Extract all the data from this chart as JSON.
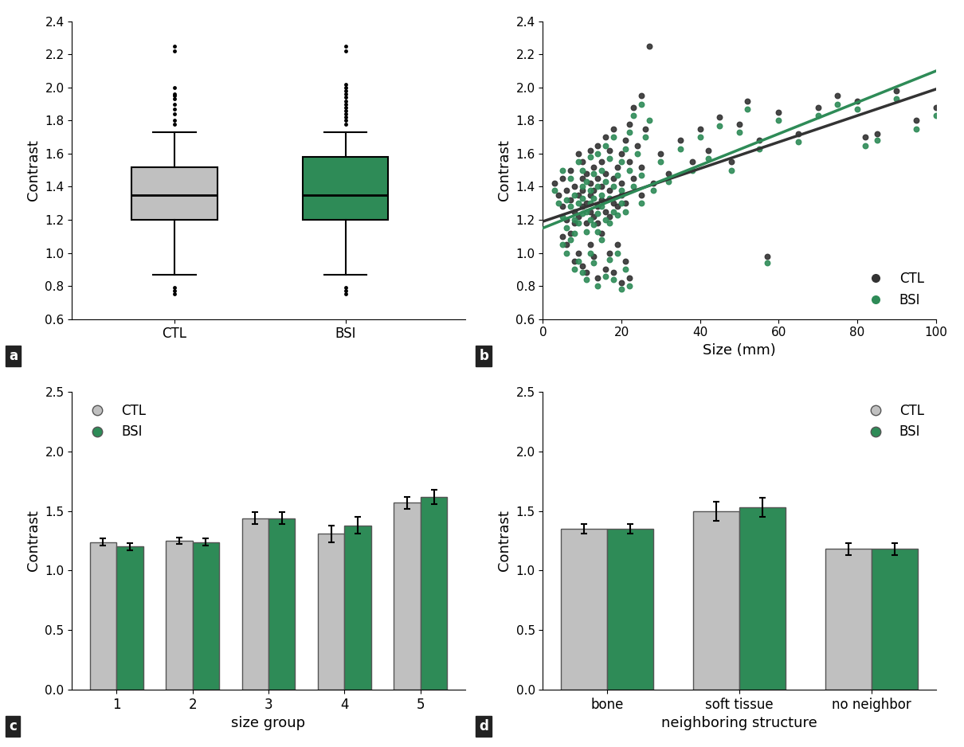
{
  "fig_width": 12.1,
  "fig_height": 9.38,
  "background_color": "#ffffff",
  "panel_a": {
    "label": "a",
    "ylabel": "Contrast",
    "ylim": [
      0.6,
      2.4
    ],
    "yticks": [
      0.6,
      0.8,
      1.0,
      1.2,
      1.4,
      1.6,
      1.8,
      2.0,
      2.2,
      2.4
    ],
    "xticks": [
      "CTL",
      "BSI"
    ],
    "ctl_median": 1.35,
    "ctl_q1": 1.2,
    "ctl_q3": 1.52,
    "ctl_whisker_low": 0.87,
    "ctl_whisker_high": 1.73,
    "ctl_outliers": [
      0.75,
      0.77,
      0.79,
      1.78,
      1.8,
      1.84,
      1.87,
      1.9,
      1.93,
      1.95,
      1.96,
      2.0,
      2.22,
      2.25
    ],
    "bsi_median": 1.35,
    "bsi_q1": 1.2,
    "bsi_q3": 1.58,
    "bsi_whisker_low": 0.87,
    "bsi_whisker_high": 1.73,
    "bsi_outliers": [
      0.75,
      0.77,
      0.79,
      1.78,
      1.8,
      1.82,
      1.84,
      1.86,
      1.88,
      1.9,
      1.92,
      1.94,
      1.96,
      1.98,
      2.0,
      2.02,
      2.22,
      2.25
    ],
    "ctl_color": "#c0c0c0",
    "bsi_color": "#2e8b57"
  },
  "panel_b": {
    "label": "b",
    "ylabel": "Contrast",
    "xlabel": "Size (mm)",
    "ylim": [
      0.6,
      2.4
    ],
    "xlim": [
      0,
      100
    ],
    "yticks": [
      0.6,
      0.8,
      1.0,
      1.2,
      1.4,
      1.6,
      1.8,
      2.0,
      2.2,
      2.4
    ],
    "xticks": [
      0,
      20,
      40,
      60,
      80,
      100
    ],
    "ctl_color": "#333333",
    "bsi_color": "#2e8b57",
    "ctl_line_intercept": 1.19,
    "ctl_line_slope": 0.008,
    "bsi_line_intercept": 1.15,
    "bsi_line_slope": 0.0095,
    "scatter_points": [
      [
        3,
        1.42,
        1.38
      ],
      [
        4,
        1.35,
        1.3
      ],
      [
        5,
        1.28,
        1.22
      ],
      [
        5,
        1.45,
        1.5
      ],
      [
        6,
        1.38,
        1.32
      ],
      [
        6,
        1.2,
        1.15
      ],
      [
        7,
        1.32,
        1.28
      ],
      [
        7,
        1.5,
        1.45
      ],
      [
        8,
        1.4,
        1.35
      ],
      [
        8,
        1.18,
        1.12
      ],
      [
        8,
        1.25,
        1.2
      ],
      [
        9,
        1.35,
        1.3
      ],
      [
        9,
        1.6,
        1.55
      ],
      [
        9,
        1.22,
        1.18
      ],
      [
        10,
        1.45,
        1.4
      ],
      [
        10,
        1.38,
        1.33
      ],
      [
        10,
        1.28,
        1.24
      ],
      [
        10,
        1.55,
        1.5
      ],
      [
        11,
        1.48,
        1.43
      ],
      [
        11,
        1.3,
        1.25
      ],
      [
        11,
        1.18,
        1.13
      ],
      [
        12,
        1.42,
        1.38
      ],
      [
        12,
        1.35,
        1.3
      ],
      [
        12,
        1.62,
        1.58
      ],
      [
        12,
        1.25,
        1.2
      ],
      [
        13,
        1.38,
        1.33
      ],
      [
        13,
        1.22,
        1.17
      ],
      [
        13,
        1.52,
        1.48
      ],
      [
        14,
        1.45,
        1.4
      ],
      [
        14,
        1.28,
        1.24
      ],
      [
        14,
        1.65,
        1.6
      ],
      [
        14,
        1.18,
        1.13
      ],
      [
        15,
        1.4,
        1.35
      ],
      [
        15,
        1.32,
        1.28
      ],
      [
        15,
        1.55,
        1.5
      ],
      [
        16,
        1.48,
        1.43
      ],
      [
        16,
        1.25,
        1.2
      ],
      [
        16,
        1.7,
        1.65
      ],
      [
        17,
        1.38,
        1.33
      ],
      [
        17,
        1.62,
        1.57
      ],
      [
        17,
        1.22,
        1.18
      ],
      [
        18,
        1.45,
        1.4
      ],
      [
        18,
        1.3,
        1.25
      ],
      [
        18,
        1.75,
        1.7
      ],
      [
        19,
        1.52,
        1.47
      ],
      [
        19,
        1.28,
        1.23
      ],
      [
        20,
        1.6,
        1.55
      ],
      [
        20,
        1.35,
        1.3
      ],
      [
        20,
        1.42,
        1.38
      ],
      [
        21,
        1.68,
        1.63
      ],
      [
        21,
        1.3,
        1.25
      ],
      [
        22,
        1.55,
        1.5
      ],
      [
        22,
        1.78,
        1.73
      ],
      [
        23,
        1.45,
        1.4
      ],
      [
        23,
        1.88,
        1.83
      ],
      [
        24,
        1.65,
        1.6
      ],
      [
        25,
        1.35,
        1.3
      ],
      [
        25,
        1.52,
        1.47
      ],
      [
        25,
        1.95,
        1.9
      ],
      [
        26,
        1.75,
        1.7
      ],
      [
        27,
        2.25,
        1.8
      ],
      [
        28,
        1.42,
        1.38
      ],
      [
        30,
        1.6,
        1.55
      ],
      [
        32,
        1.48,
        1.43
      ],
      [
        35,
        1.68,
        1.63
      ],
      [
        38,
        1.55,
        1.5
      ],
      [
        40,
        1.75,
        1.7
      ],
      [
        42,
        1.62,
        1.57
      ],
      [
        45,
        1.82,
        1.77
      ],
      [
        48,
        1.55,
        1.5
      ],
      [
        50,
        1.78,
        1.73
      ],
      [
        52,
        1.92,
        1.87
      ],
      [
        55,
        1.68,
        1.63
      ],
      [
        57,
        0.98,
        0.94
      ],
      [
        60,
        1.85,
        1.8
      ],
      [
        65,
        1.72,
        1.67
      ],
      [
        70,
        1.88,
        1.83
      ],
      [
        75,
        1.95,
        1.9
      ],
      [
        80,
        1.92,
        1.87
      ],
      [
        82,
        1.7,
        1.65
      ],
      [
        85,
        1.72,
        1.68
      ],
      [
        90,
        1.98,
        1.93
      ],
      [
        95,
        1.8,
        1.75
      ],
      [
        100,
        1.88,
        1.83
      ],
      [
        5,
        1.1,
        1.05
      ],
      [
        6,
        1.05,
        1.0
      ],
      [
        7,
        1.12,
        1.08
      ],
      [
        8,
        0.95,
        0.9
      ],
      [
        9,
        1.0,
        0.95
      ],
      [
        10,
        0.92,
        0.88
      ],
      [
        11,
        0.88,
        0.84
      ],
      [
        12,
        1.05,
        1.0
      ],
      [
        13,
        0.98,
        0.94
      ],
      [
        14,
        0.85,
        0.8
      ],
      [
        15,
        1.12,
        1.08
      ],
      [
        16,
        0.9,
        0.86
      ],
      [
        17,
        1.0,
        0.96
      ],
      [
        18,
        0.88,
        0.84
      ],
      [
        19,
        1.05,
        1.0
      ],
      [
        20,
        0.82,
        0.78
      ],
      [
        21,
        0.95,
        0.9
      ],
      [
        22,
        0.85,
        0.8
      ]
    ]
  },
  "panel_c": {
    "label": "c",
    "ylabel": "Contrast",
    "xlabel": "size group",
    "ylim": [
      0.0,
      2.5
    ],
    "yticks": [
      0.0,
      0.5,
      1.0,
      1.5,
      2.0,
      2.5
    ],
    "categories": [
      "1",
      "2",
      "3",
      "4",
      "5"
    ],
    "ctl_values": [
      1.24,
      1.25,
      1.44,
      1.31,
      1.57
    ],
    "bsi_values": [
      1.2,
      1.24,
      1.44,
      1.38,
      1.62
    ],
    "ctl_errors": [
      0.03,
      0.03,
      0.05,
      0.07,
      0.05
    ],
    "bsi_errors": [
      0.03,
      0.03,
      0.05,
      0.07,
      0.06
    ],
    "ctl_color": "#c0c0c0",
    "bsi_color": "#2e8b57"
  },
  "panel_d": {
    "label": "d",
    "ylabel": "Contrast",
    "xlabel": "neighboring structure",
    "ylim": [
      0.0,
      2.5
    ],
    "yticks": [
      0.0,
      0.5,
      1.0,
      1.5,
      2.0,
      2.5
    ],
    "categories": [
      "bone",
      "soft tissue",
      "no neighbor"
    ],
    "ctl_values": [
      1.35,
      1.5,
      1.18
    ],
    "bsi_values": [
      1.35,
      1.53,
      1.18
    ],
    "ctl_errors": [
      0.04,
      0.08,
      0.05
    ],
    "bsi_errors": [
      0.04,
      0.08,
      0.05
    ],
    "ctl_color": "#c0c0c0",
    "bsi_color": "#2e8b57"
  },
  "label_fontsize": 12,
  "tick_fontsize": 11,
  "axis_label_fontsize": 13,
  "panel_label_fontsize": 12
}
